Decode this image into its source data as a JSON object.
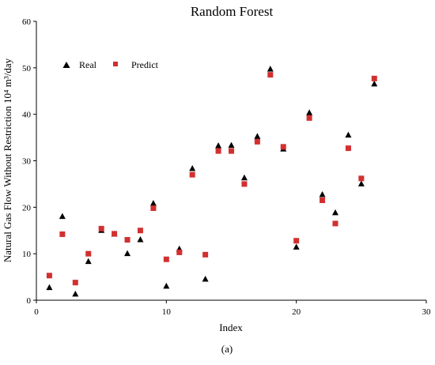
{
  "chart_data": {
    "type": "scatter",
    "title": "Random Forest",
    "xlabel": "Index",
    "ylabel": "Natural Gas Flow Without Restriction 10⁴ m³/day",
    "xlim": [
      0,
      30
    ],
    "ylim": [
      0,
      60
    ],
    "xticks": [
      0,
      10,
      20,
      30
    ],
    "yticks": [
      0,
      10,
      20,
      30,
      40,
      50,
      60
    ],
    "grid": false,
    "legend_position": "top-left",
    "series": [
      {
        "name": "Real",
        "marker": "triangle",
        "color": "#000000",
        "x": [
          1,
          2,
          3,
          4,
          5,
          6,
          7,
          8,
          9,
          10,
          11,
          12,
          13,
          14,
          15,
          16,
          17,
          18,
          19,
          20,
          21,
          22,
          23,
          24,
          25,
          26
        ],
        "y": [
          2.7,
          18.0,
          1.3,
          8.3,
          15.0,
          14.2,
          10.0,
          13.0,
          20.8,
          3.0,
          11.0,
          28.3,
          4.5,
          33.2,
          33.3,
          26.3,
          35.2,
          49.7,
          32.5,
          11.4,
          40.3,
          22.7,
          18.8,
          35.5,
          25.0,
          46.5
        ]
      },
      {
        "name": "Predict",
        "marker": "square",
        "color": "#d32f2f",
        "x": [
          1,
          2,
          3,
          4,
          5,
          6,
          7,
          8,
          9,
          10,
          11,
          12,
          13,
          14,
          15,
          16,
          17,
          18,
          19,
          20,
          21,
          22,
          23,
          24,
          25,
          26
        ],
        "y": [
          5.3,
          14.2,
          3.8,
          10.0,
          15.4,
          14.3,
          13.0,
          15.0,
          19.8,
          8.8,
          10.3,
          27.0,
          9.8,
          32.1,
          32.1,
          25.0,
          34.1,
          48.5,
          33.0,
          12.8,
          39.2,
          21.5,
          16.5,
          32.7,
          26.2,
          47.7
        ]
      }
    ]
  },
  "caption": "(a)"
}
